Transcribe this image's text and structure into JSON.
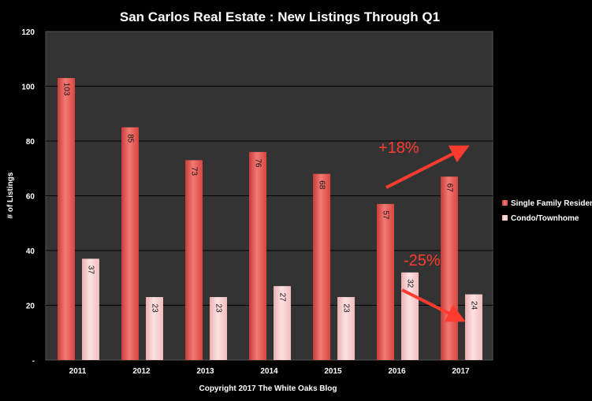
{
  "chart_data": {
    "type": "bar",
    "title": "San Carlos Real Estate :  New Listings Through Q1",
    "xlabel": "Copyright 2017 The White Oaks Blog",
    "ylabel": "# of Listings",
    "ylim": [
      0,
      120
    ],
    "yticks": [
      0,
      20,
      40,
      60,
      80,
      100,
      120
    ],
    "ytick_labels": [
      "-",
      "20",
      "40",
      "60",
      "80",
      "100",
      "120"
    ],
    "categories": [
      "2011",
      "2012",
      "2013",
      "2014",
      "2015",
      "2016",
      "2017"
    ],
    "series": [
      {
        "name": "Single Family Residence",
        "values": [
          103,
          85,
          73,
          76,
          68,
          57,
          67
        ],
        "color": "#e8534f"
      },
      {
        "name": "Condo/Townhome",
        "values": [
          37,
          23,
          23,
          27,
          23,
          32,
          24
        ],
        "color": "#f7c6c6"
      }
    ],
    "grid": true,
    "legend_position": "right",
    "annotations": [
      {
        "text": "+18%",
        "color": "#ff3b30"
      },
      {
        "text": "-25%",
        "color": "#ff3b30"
      }
    ],
    "colors": {
      "background": "#000000",
      "plot_background": "#333333",
      "gridline": "#000000",
      "annotation": "#ff3b30"
    }
  }
}
